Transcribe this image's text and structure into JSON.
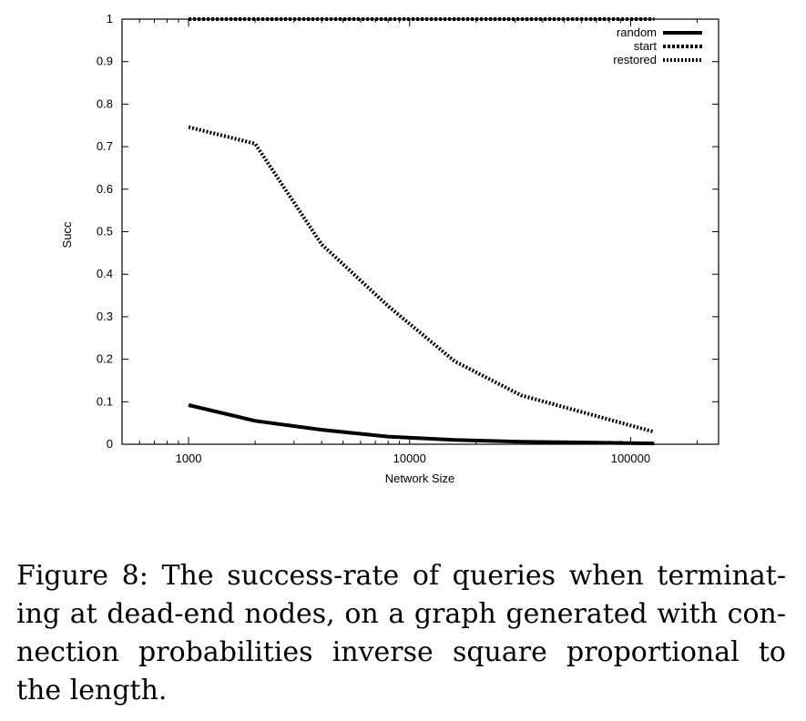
{
  "chart_data": {
    "type": "line",
    "title": "",
    "xlabel": "Network Size",
    "ylabel": "Succ",
    "xscale": "log",
    "xlim": [
      500,
      250000
    ],
    "ylim": [
      0,
      1
    ],
    "xticks": [
      "1000",
      "10000",
      "100000"
    ],
    "yticks": [
      "0",
      "0.1",
      "0.2",
      "0.3",
      "0.4",
      "0.5",
      "0.6",
      "0.7",
      "0.8",
      "0.9",
      "1"
    ],
    "grid": false,
    "legend_position": "top-right",
    "series": [
      {
        "name": "random",
        "style": "solid",
        "x": [
          1000,
          2000,
          4000,
          8000,
          16000,
          32000,
          64000,
          128000
        ],
        "y": [
          0.092,
          0.055,
          0.034,
          0.018,
          0.01,
          0.006,
          0.004,
          0.002
        ]
      },
      {
        "name": "start",
        "style": "dashed",
        "x": [
          1000,
          2000,
          4000,
          8000,
          16000,
          32000,
          64000,
          128000
        ],
        "y": [
          1,
          1,
          1,
          1,
          1,
          1,
          1,
          1
        ]
      },
      {
        "name": "restored",
        "style": "dotted",
        "x": [
          1000,
          2000,
          4000,
          8000,
          16000,
          32000,
          64000,
          128000
        ],
        "y": [
          0.746,
          0.707,
          0.47,
          0.325,
          0.195,
          0.115,
          0.072,
          0.029
        ]
      }
    ]
  },
  "caption": "Figure 8:  The success-rate of queries when terminat­ing at dead-end nodes, on a graph generated with con­nection probabilities inverse square proportional to the length."
}
